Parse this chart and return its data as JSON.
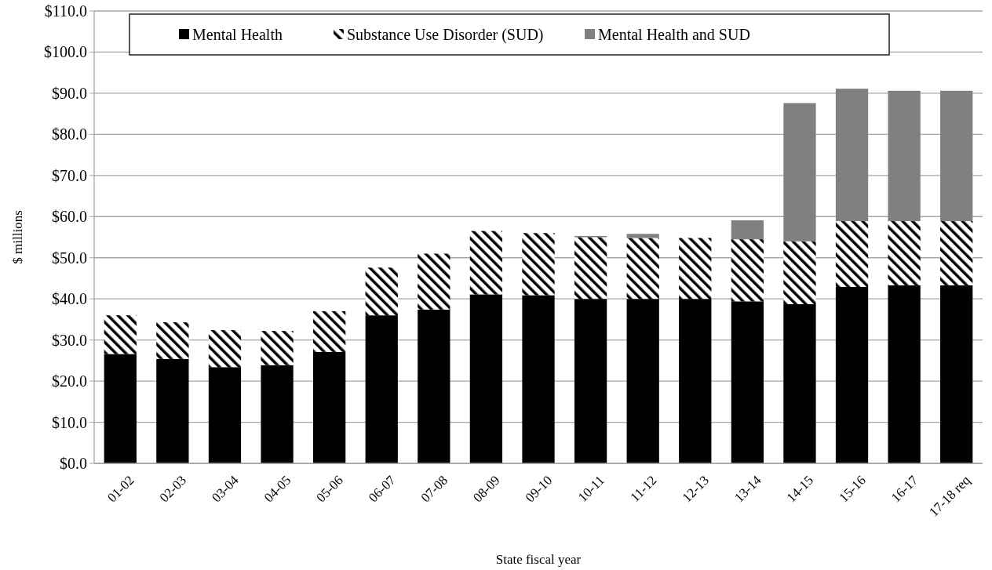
{
  "chart_data": {
    "type": "bar",
    "stacked": true,
    "xlabel": "State fiscal year",
    "ylabel": "$ millions",
    "categories": [
      "01-02",
      "02-03",
      "03-04",
      "04-05",
      "05-06",
      "06-07",
      "07-08",
      "08-09",
      "09-10",
      "10-11",
      "11-12",
      "12-13",
      "13-14",
      "14-15",
      "15-16",
      "16-17",
      "17-18 req"
    ],
    "series": [
      {
        "name": "Mental Health",
        "color": "#000000",
        "values": [
          26.6,
          25.4,
          23.4,
          23.9,
          27.1,
          36.0,
          37.4,
          41.1,
          40.9,
          40.0,
          40.0,
          40.0,
          39.4,
          38.7,
          42.9,
          43.3,
          43.3
        ]
      },
      {
        "name": "Substance Use Disorder (SUD)",
        "color": "#000000",
        "values": [
          9.4,
          8.9,
          9.0,
          8.3,
          9.9,
          11.6,
          13.6,
          15.4,
          15.1,
          15.0,
          14.8,
          14.8,
          15.1,
          15.3,
          16.0,
          15.6,
          15.6
        ]
      },
      {
        "name": "Mental Health and SUD",
        "color": "#808080",
        "values": [
          null,
          null,
          null,
          null,
          null,
          null,
          null,
          null,
          null,
          0.3,
          1.0,
          null,
          4.6,
          33.6,
          32.2,
          31.7,
          31.7
        ]
      }
    ],
    "ylim": [
      0,
      110
    ],
    "yticks": [
      {
        "value": 0,
        "label": "$0.0"
      },
      {
        "value": 10,
        "label": "$10.0"
      },
      {
        "value": 20,
        "label": "$20.0"
      },
      {
        "value": 30,
        "label": "$30.0"
      },
      {
        "value": 40,
        "label": "$40.0"
      },
      {
        "value": 50,
        "label": "$50.0"
      },
      {
        "value": 60,
        "label": "$60.0"
      },
      {
        "value": 70,
        "label": "$70.0"
      },
      {
        "value": 80,
        "label": "$80.0"
      },
      {
        "value": 90,
        "label": "$90.0"
      },
      {
        "value": 100,
        "label": "$100.0"
      },
      {
        "value": 110,
        "label": "$110.0"
      }
    ],
    "grid": "y",
    "legend": "top"
  }
}
